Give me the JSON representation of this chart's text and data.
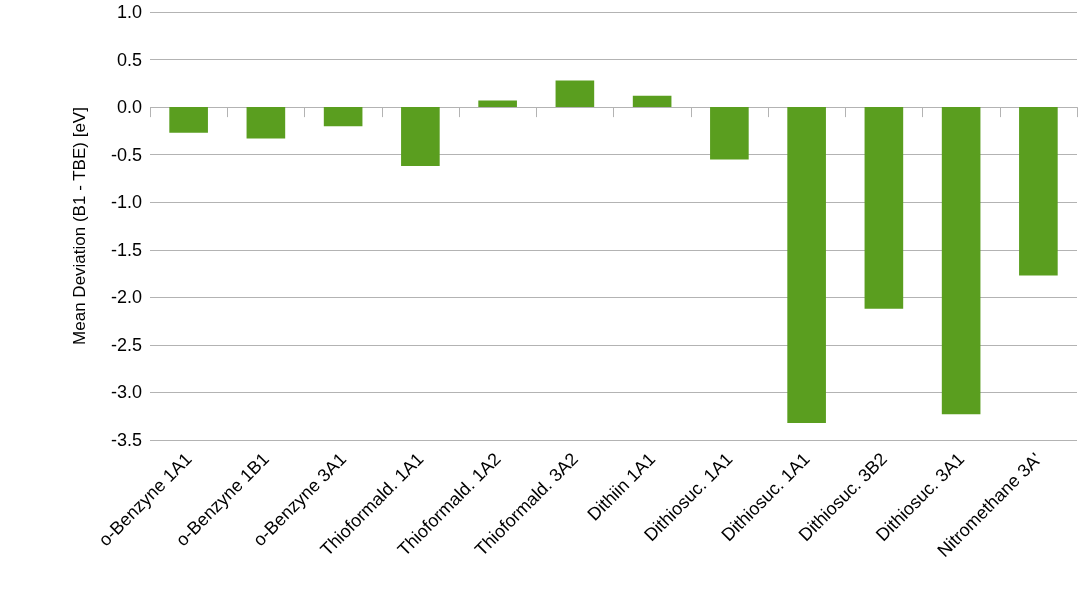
{
  "chart_data": {
    "type": "bar",
    "ylabel": "Mean Deviation (B1 - TBE) [eV]",
    "categories": [
      "o-Benzyne 1A1",
      "o-Benzyne 1B1",
      "o-Benzyne 3A1",
      "Thioformald. 1A1",
      "Thioformald. 1A2",
      "Thioformald. 3A2",
      "Dithiin 1A1",
      "Dithiosuc. 1A1",
      "Dithiosuc. 1A1",
      "Dithiosuc. 3B2",
      "Dithiosuc. 3A1",
      "Nitromethane 3A'"
    ],
    "values": [
      -0.27,
      -0.33,
      -0.2,
      -0.62,
      0.07,
      0.28,
      0.12,
      -0.55,
      -3.32,
      -2.12,
      -3.23,
      -1.77
    ],
    "color": "#5a9e1f",
    "ylim": [
      -3.5,
      1.0
    ],
    "yticks": [
      {
        "value": -3.5,
        "label": "-3.5"
      },
      {
        "value": -3,
        "label": "-3.0"
      },
      {
        "value": -2.5,
        "label": "-2.5"
      },
      {
        "value": -2,
        "label": "-2.0"
      },
      {
        "value": -1.5,
        "label": "-1.5"
      },
      {
        "value": -1,
        "label": "-1.0"
      },
      {
        "value": -0.5,
        "label": "-0.5"
      },
      {
        "value": 0,
        "label": "0.0"
      },
      {
        "value": 0.5,
        "label": "0.5"
      },
      {
        "value": 1,
        "label": "1.0"
      }
    ],
    "grid": "y"
  }
}
